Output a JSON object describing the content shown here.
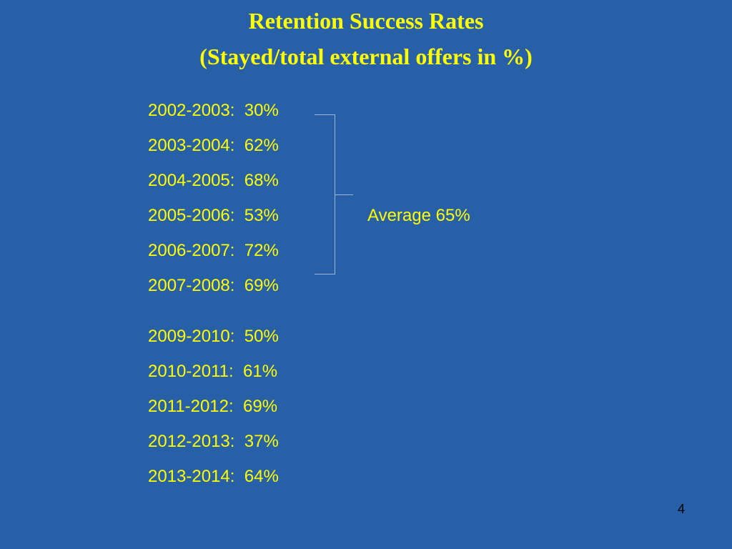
{
  "title": {
    "line1": "Retention Success Rates",
    "line2": "(Stayed/total external offers in %)"
  },
  "rows": [
    "2002-2003:  30%",
    "2003-2004:  62%",
    "2004-2005:  68%",
    "2005-2006:  53%",
    "2006-2007:  72%",
    "2007-2008:  69%",
    "2009-2010:  50%",
    "2010-2011:  61%",
    "2011-2012:  69%",
    "2012-2013:  37%",
    "2013-2014:  64%"
  ],
  "average_label": "Average 65%",
  "page_number": "4",
  "colors": {
    "background": "#2860A7",
    "text": "#FFFF00",
    "bracket": "#9BB4D8",
    "page_number": "#000000"
  }
}
